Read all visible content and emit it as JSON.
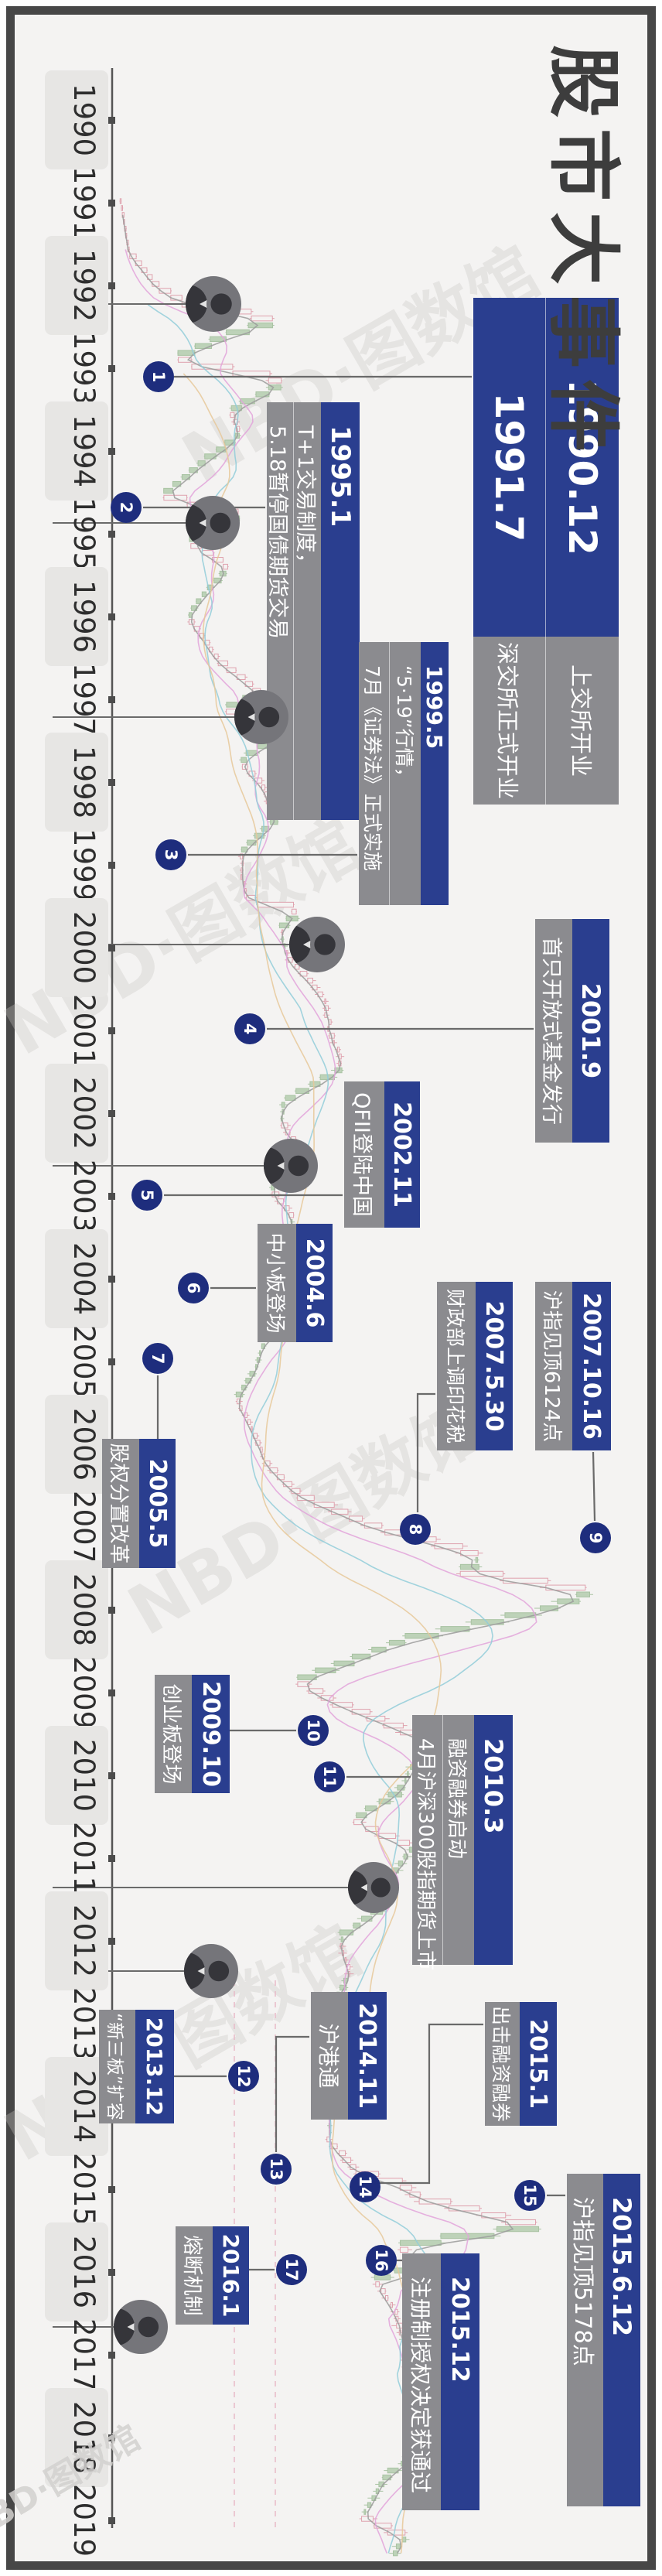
{
  "title": "股市大事件",
  "watermark": "NBD·图数馆",
  "axis": {
    "years": [
      1990,
      1991,
      1992,
      1993,
      1994,
      1995,
      1996,
      1997,
      1998,
      1999,
      2000,
      2001,
      2002,
      2003,
      2004,
      2005,
      2006,
      2007,
      2008,
      2009,
      2010,
      2011,
      2012,
      2013,
      2014,
      2015,
      2016,
      2017,
      2018,
      2019
    ]
  },
  "events": [
    {
      "n": 1,
      "dates": [
        "1990.12",
        "1991.7"
      ],
      "descs": [
        "上交所开业",
        "深交所正式开业"
      ]
    },
    {
      "n": 2,
      "dates": [
        "1995.1"
      ],
      "descs": [
        "T+1交易制度，",
        "5.18暂停国债期货交易"
      ]
    },
    {
      "n": 3,
      "dates": [
        "1999.5"
      ],
      "descs": [
        "“5·19”行情，",
        "7月《证券法》正式实施"
      ]
    },
    {
      "n": 4,
      "dates": [
        "2001.9"
      ],
      "descs": [
        "首只开放式基金发行"
      ]
    },
    {
      "n": 5,
      "dates": [
        "2002.11"
      ],
      "descs": [
        "QFII登陆中国"
      ]
    },
    {
      "n": 6,
      "dates": [
        "2004.6"
      ],
      "descs": [
        "中小板登场"
      ]
    },
    {
      "n": 7,
      "dates": [
        "2005.5"
      ],
      "descs": [
        "股权分置改革"
      ]
    },
    {
      "n": 8,
      "dates": [
        "2007.5.30"
      ],
      "descs": [
        "财政部上调印花税"
      ]
    },
    {
      "n": 9,
      "dates": [
        "2007.10.16"
      ],
      "descs": [
        "沪指见顶6124点"
      ]
    },
    {
      "n": 10,
      "dates": [
        "2009.10"
      ],
      "descs": [
        "创业板登场"
      ]
    },
    {
      "n": 11,
      "dates": [
        "2010.3"
      ],
      "descs": [
        "融资融券启动",
        "4月沪深300股指期货上市"
      ]
    },
    {
      "n": 12,
      "dates": [
        "2013.12"
      ],
      "descs": [
        "“新三板”扩容"
      ]
    },
    {
      "n": 13,
      "dates": [
        "2014.11"
      ],
      "descs": [
        "沪港通"
      ]
    },
    {
      "n": 14,
      "dates": [
        "2015.1"
      ],
      "descs": [
        "出击融资融券"
      ]
    },
    {
      "n": 15,
      "dates": [
        "2015.6.12"
      ],
      "descs": [
        "沪指见顶5178点"
      ]
    },
    {
      "n": 16,
      "dates": [
        "2015.12"
      ],
      "descs": [
        "注册制授权决定获通过"
      ]
    },
    {
      "n": 17,
      "dates": [
        "2016.1"
      ],
      "descs": [
        "熔断机制"
      ]
    }
  ],
  "chart_data": {
    "type": "candlestick",
    "series_name": "沪指",
    "x_unit": "year",
    "xlim": [
      1990,
      2019.5
    ],
    "ylim": [
      0,
      6500
    ],
    "notable_points": {
      "peak_2007": 6124,
      "peak_2015": 5178
    },
    "keypoints": [
      [
        1990.94,
        100
      ],
      [
        1991.3,
        120
      ],
      [
        1991.6,
        137
      ],
      [
        1992.0,
        293
      ],
      [
        1992.2,
        500
      ],
      [
        1992.42,
        1429
      ],
      [
        1992.6,
        900
      ],
      [
        1992.9,
        386
      ],
      [
        1993.15,
        1559
      ],
      [
        1993.5,
        928
      ],
      [
        1993.8,
        1044
      ],
      [
        1994.1,
        700
      ],
      [
        1994.55,
        325
      ],
      [
        1994.75,
        1053
      ],
      [
        1995.1,
        550
      ],
      [
        1995.4,
        926
      ],
      [
        1995.7,
        700
      ],
      [
        1996.0,
        537
      ],
      [
        1996.5,
        800
      ],
      [
        1996.95,
        1258
      ],
      [
        1997.1,
        870
      ],
      [
        1997.4,
        1510
      ],
      [
        1997.75,
        1025
      ],
      [
        1998.0,
        1250
      ],
      [
        1998.45,
        1430
      ],
      [
        1998.85,
        1043
      ],
      [
        1999.2,
        1064
      ],
      [
        1999.42,
        1109
      ],
      [
        1999.55,
        1756
      ],
      [
        1999.75,
        1471
      ],
      [
        2000.1,
        1545
      ],
      [
        2000.6,
        2000
      ],
      [
        2001.0,
        2077
      ],
      [
        2001.45,
        2245
      ],
      [
        2001.85,
        1514
      ],
      [
        2002.1,
        1491
      ],
      [
        2002.5,
        1732
      ],
      [
        2002.9,
        1357
      ],
      [
        2003.3,
        1649
      ],
      [
        2003.85,
        1307
      ],
      [
        2004.3,
        1783
      ],
      [
        2004.75,
        1300
      ],
      [
        2005.1,
        1191
      ],
      [
        2005.45,
        998
      ],
      [
        2005.8,
        1150
      ],
      [
        2006.2,
        1300
      ],
      [
        2006.6,
        1672
      ],
      [
        2007.0,
        2675
      ],
      [
        2007.25,
        3841
      ],
      [
        2007.42,
        4336
      ],
      [
        2007.5,
        3670
      ],
      [
        2007.79,
        6124
      ],
      [
        2008.0,
        5265
      ],
      [
        2008.35,
        3094
      ],
      [
        2008.6,
        2397
      ],
      [
        2008.85,
        1664
      ],
      [
        2009.1,
        2100
      ],
      [
        2009.6,
        3478
      ],
      [
        2009.9,
        3195
      ],
      [
        2010.2,
        3000
      ],
      [
        2010.55,
        2363
      ],
      [
        2010.85,
        3186
      ],
      [
        2011.2,
        2900
      ],
      [
        2011.6,
        2762
      ],
      [
        2011.95,
        2199
      ],
      [
        2012.4,
        2350
      ],
      [
        2012.95,
        1949
      ],
      [
        2013.1,
        2269
      ],
      [
        2013.5,
        1979
      ],
      [
        2013.95,
        2100
      ],
      [
        2014.4,
        2054
      ],
      [
        2014.8,
        2450
      ],
      [
        2014.95,
        3100
      ],
      [
        2015.1,
        3235
      ],
      [
        2015.45,
        5178
      ],
      [
        2015.6,
        3663
      ],
      [
        2015.7,
        2927
      ],
      [
        2015.95,
        3640
      ],
      [
        2016.05,
        2638
      ],
      [
        2016.4,
        2900
      ],
      [
        2016.9,
        3100
      ],
      [
        2017.3,
        3140
      ],
      [
        2017.85,
        3382
      ],
      [
        2018.05,
        3480
      ],
      [
        2018.5,
        2775
      ],
      [
        2018.95,
        2494
      ],
      [
        2019.2,
        3100
      ],
      [
        2019.42,
        2900
      ]
    ]
  }
}
